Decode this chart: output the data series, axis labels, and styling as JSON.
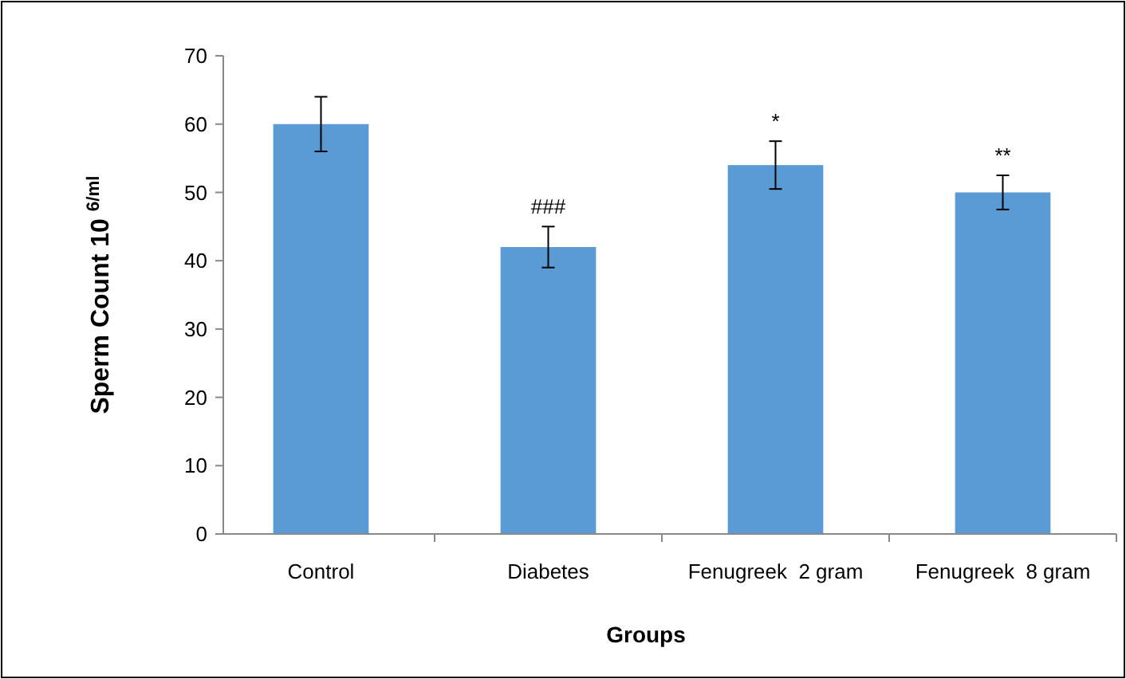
{
  "chart_data": {
    "type": "bar",
    "xlabel": "Groups",
    "ylabel": "Sperm Count 10 $^{6/ml}$",
    "categories": [
      "Control",
      "Diabetes",
      "Fenugreek  2 gram",
      "Fenugreek  8 gram"
    ],
    "values": [
      60,
      42,
      54,
      50
    ],
    "errors": [
      4,
      3,
      3.5,
      2.5
    ],
    "color": "#5b9bd5",
    "ylim": [
      0,
      70
    ],
    "yticks": [
      0,
      10,
      20,
      30,
      40,
      50,
      60,
      70
    ],
    "grid": false,
    "annotations": [
      {
        "text": "###",
        "x": "Diabetes",
        "y": 45
      },
      {
        "text": "*",
        "x": "Fenugreek  2 gram",
        "y": 57.5
      },
      {
        "text": "**",
        "x": "Fenugreek  8 gram",
        "y": 52.5
      }
    ]
  }
}
